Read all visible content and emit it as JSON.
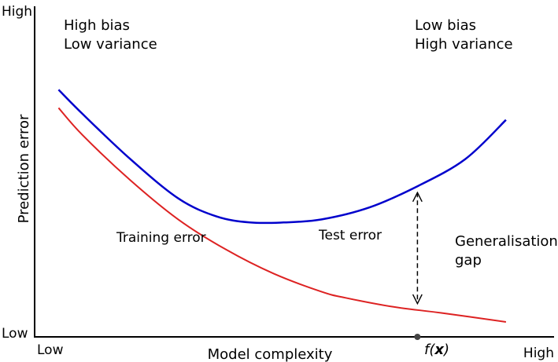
{
  "chart_data": {
    "type": "line",
    "xlabel": "Model complexity",
    "ylabel": "Prediction error",
    "axis_ticks": {
      "x_low": "Low",
      "x_high": "High",
      "y_low": "Low",
      "y_high": "High"
    },
    "xlim": [
      0,
      1
    ],
    "ylim": [
      0,
      1
    ],
    "series": [
      {
        "name": "Test error",
        "color": "#0000cc",
        "x": [
          0.05,
          0.1,
          0.2,
          0.3,
          0.38,
          0.45,
          0.52,
          0.6,
          0.7,
          0.8,
          0.9,
          0.985
        ],
        "y": [
          0.77,
          0.69,
          0.54,
          0.41,
          0.35,
          0.33,
          0.33,
          0.34,
          0.38,
          0.45,
          0.54,
          0.67
        ]
      },
      {
        "name": "Training error",
        "color": "#dd2222",
        "x": [
          0.05,
          0.1,
          0.2,
          0.3,
          0.4,
          0.5,
          0.6,
          0.65,
          0.75,
          0.85,
          0.985
        ],
        "y": [
          0.71,
          0.62,
          0.47,
          0.34,
          0.24,
          0.16,
          0.1,
          0.08,
          0.05,
          0.03,
          0.0
        ]
      }
    ],
    "annotations": [
      {
        "lines": [
          "High bias",
          "Low variance"
        ]
      },
      {
        "lines": [
          "Low bias",
          "High variance"
        ]
      },
      {
        "lines": [
          "Training error"
        ]
      },
      {
        "lines": [
          "Test error"
        ]
      },
      {
        "lines": [
          "Generalisation",
          "gap"
        ]
      }
    ],
    "gap_marker": {
      "x": 0.8,
      "label": "f(",
      "label_bold": "x",
      "label_end": ")"
    }
  }
}
